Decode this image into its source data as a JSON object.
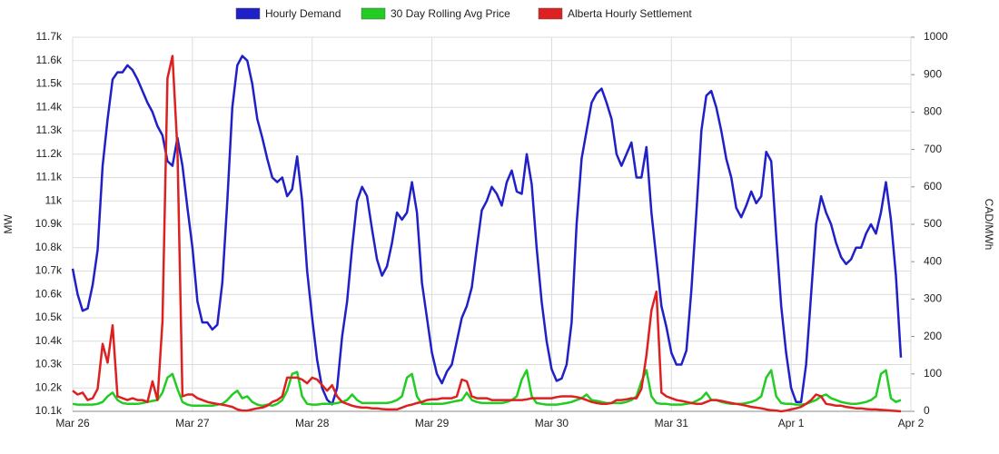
{
  "chart_data": {
    "type": "line",
    "xlim": [
      0,
      168
    ],
    "xticks": [
      {
        "value": 0,
        "label": "Mar 26"
      },
      {
        "value": 24,
        "label": "Mar 27"
      },
      {
        "value": 48,
        "label": "Mar 28"
      },
      {
        "value": 72,
        "label": "Mar 29"
      },
      {
        "value": 96,
        "label": "Mar 30"
      },
      {
        "value": 120,
        "label": "Mar 31"
      },
      {
        "value": 144,
        "label": "Apr 1"
      },
      {
        "value": 168,
        "label": "Apr 2"
      }
    ],
    "ylabel": "MW",
    "ylim": [
      10100,
      11700
    ],
    "yticks": [
      {
        "value": 10100,
        "label": "10.1k"
      },
      {
        "value": 10200,
        "label": "10.2k"
      },
      {
        "value": 10300,
        "label": "10.3k"
      },
      {
        "value": 10400,
        "label": "10.4k"
      },
      {
        "value": 10500,
        "label": "10.5k"
      },
      {
        "value": 10600,
        "label": "10.6k"
      },
      {
        "value": 10700,
        "label": "10.7k"
      },
      {
        "value": 10800,
        "label": "10.8k"
      },
      {
        "value": 10900,
        "label": "10.9k"
      },
      {
        "value": 11000,
        "label": "11k"
      },
      {
        "value": 11100,
        "label": "11.1k"
      },
      {
        "value": 11200,
        "label": "11.2k"
      },
      {
        "value": 11300,
        "label": "11.3k"
      },
      {
        "value": 11400,
        "label": "11.4k"
      },
      {
        "value": 11500,
        "label": "11.5k"
      },
      {
        "value": 11600,
        "label": "11.6k"
      },
      {
        "value": 11700,
        "label": "11.7k"
      }
    ],
    "y2label": "CAD/MWh",
    "y2lim": [
      0,
      1000
    ],
    "y2ticks": [
      0,
      100,
      200,
      300,
      400,
      500,
      600,
      700,
      800,
      900,
      1000
    ],
    "grid": true,
    "legend": "top",
    "x": [
      0,
      1,
      2,
      3,
      4,
      5,
      6,
      7,
      8,
      9,
      10,
      11,
      12,
      13,
      14,
      15,
      16,
      17,
      18,
      19,
      20,
      21,
      22,
      23,
      24,
      25,
      26,
      27,
      28,
      29,
      30,
      31,
      32,
      33,
      34,
      35,
      36,
      37,
      38,
      39,
      40,
      41,
      42,
      43,
      44,
      45,
      46,
      47,
      48,
      49,
      50,
      51,
      52,
      53,
      54,
      55,
      56,
      57,
      58,
      59,
      60,
      61,
      62,
      63,
      64,
      65,
      66,
      67,
      68,
      69,
      70,
      71,
      72,
      73,
      74,
      75,
      76,
      77,
      78,
      79,
      80,
      81,
      82,
      83,
      84,
      85,
      86,
      87,
      88,
      89,
      90,
      91,
      92,
      93,
      94,
      95,
      96,
      97,
      98,
      99,
      100,
      101,
      102,
      103,
      104,
      105,
      106,
      107,
      108,
      109,
      110,
      111,
      112,
      113,
      114,
      115,
      116,
      117,
      118,
      119,
      120,
      121,
      122,
      123,
      124,
      125,
      126,
      127,
      128,
      129,
      130,
      131,
      132,
      133,
      134,
      135,
      136,
      137,
      138,
      139,
      140,
      141,
      142,
      143,
      144,
      145,
      146,
      147,
      148,
      149,
      150,
      151,
      152,
      153,
      154,
      155,
      156,
      157,
      158,
      159,
      160,
      161,
      162,
      163,
      164,
      165,
      166
    ],
    "series": [
      {
        "name": "Hourly Demand",
        "color": "#2020c8",
        "values": [
          10710,
          10600,
          10530,
          10540,
          10640,
          10790,
          11150,
          11350,
          11520,
          11550,
          11550,
          11580,
          11560,
          11520,
          11470,
          11420,
          11380,
          11320,
          11280,
          11170,
          11150,
          11270,
          11150,
          10970,
          10800,
          10570,
          10480,
          10480,
          10450,
          10470,
          10650,
          11000,
          11400,
          11580,
          11620,
          11600,
          11500,
          11350,
          11270,
          11180,
          11100,
          11080,
          11100,
          11020,
          11050,
          11190,
          11000,
          10700,
          10500,
          10320,
          10200,
          10150,
          10130,
          10200,
          10420,
          10570,
          10800,
          11000,
          11060,
          11020,
          10880,
          10750,
          10680,
          10720,
          10820,
          10950,
          10920,
          10950,
          11080,
          10950,
          10650,
          10500,
          10350,
          10260,
          10220,
          10270,
          10300,
          10400,
          10500,
          10550,
          10630,
          10800,
          10960,
          11000,
          11060,
          11030,
          10980,
          11080,
          11130,
          11040,
          11030,
          11200,
          11070,
          10800,
          10570,
          10400,
          10280,
          10230,
          10240,
          10300,
          10480,
          10900,
          11180,
          11300,
          11420,
          11460,
          11480,
          11420,
          11350,
          11200,
          11150,
          11200,
          11250,
          11100,
          11100,
          11230,
          10950,
          10750,
          10550,
          10460,
          10350,
          10300,
          10300,
          10360,
          10620,
          10950,
          11300,
          11450,
          11470,
          11400,
          11300,
          11180,
          11100,
          10970,
          10930,
          10980,
          11040,
          10990,
          11020,
          11210,
          11170,
          10850,
          10550,
          10350,
          10200,
          10140,
          10140,
          10300,
          10600,
          10900,
          11020,
          10950,
          10900,
          10820,
          10760,
          10730,
          10750,
          10800,
          10800,
          10860,
          10900,
          10860,
          10950,
          11080,
          10920,
          10680,
          10330
        ]
      },
      {
        "name": "30 Day Rolling Avg Price",
        "color": "#22cc22",
        "axis": "y2",
        "values": [
          20,
          18,
          18,
          18,
          18,
          20,
          25,
          40,
          50,
          30,
          22,
          20,
          20,
          20,
          22,
          25,
          28,
          30,
          50,
          90,
          100,
          60,
          25,
          18,
          15,
          15,
          15,
          15,
          15,
          18,
          20,
          30,
          45,
          55,
          35,
          40,
          25,
          18,
          15,
          18,
          15,
          20,
          30,
          55,
          100,
          105,
          40,
          20,
          18,
          18,
          20,
          20,
          20,
          22,
          25,
          30,
          45,
          30,
          22,
          22,
          22,
          22,
          22,
          22,
          25,
          30,
          40,
          90,
          100,
          40,
          20,
          20,
          20,
          20,
          20,
          22,
          25,
          28,
          30,
          50,
          30,
          25,
          22,
          22,
          22,
          22,
          22,
          25,
          30,
          40,
          85,
          110,
          40,
          22,
          20,
          18,
          18,
          18,
          20,
          22,
          25,
          30,
          35,
          45,
          30,
          28,
          25,
          22,
          22,
          22,
          22,
          25,
          30,
          40,
          80,
          110,
          40,
          22,
          20,
          20,
          18,
          18,
          18,
          20,
          22,
          28,
          35,
          50,
          30,
          30,
          25,
          22,
          20,
          20,
          20,
          22,
          25,
          30,
          40,
          90,
          110,
          40,
          22,
          20,
          20,
          18,
          18,
          20,
          25,
          30,
          40,
          45,
          35,
          30,
          25,
          22,
          20,
          20,
          22,
          25,
          30,
          40,
          100,
          110,
          35,
          25,
          30
        ]
      },
      {
        "name": "Alberta Hourly Settlement",
        "color": "#dd2020",
        "axis": "y2",
        "values": [
          55,
          45,
          50,
          30,
          35,
          60,
          180,
          130,
          230,
          40,
          35,
          30,
          35,
          30,
          30,
          25,
          80,
          30,
          240,
          890,
          950,
          700,
          40,
          45,
          45,
          35,
          30,
          25,
          22,
          20,
          18,
          15,
          12,
          5,
          2,
          2,
          5,
          8,
          10,
          15,
          25,
          30,
          40,
          90,
          90,
          90,
          85,
          75,
          90,
          85,
          70,
          55,
          70,
          40,
          25,
          20,
          15,
          12,
          10,
          10,
          8,
          8,
          6,
          5,
          5,
          5,
          10,
          15,
          18,
          22,
          25,
          30,
          32,
          32,
          35,
          35,
          35,
          40,
          85,
          80,
          40,
          35,
          35,
          35,
          30,
          30,
          30,
          30,
          30,
          30,
          30,
          32,
          35,
          35,
          35,
          35,
          35,
          38,
          40,
          40,
          40,
          38,
          35,
          30,
          25,
          22,
          20,
          20,
          22,
          30,
          30,
          32,
          35,
          35,
          60,
          150,
          270,
          320,
          50,
          40,
          35,
          30,
          28,
          25,
          22,
          20,
          20,
          25,
          30,
          30,
          28,
          25,
          22,
          20,
          18,
          15,
          12,
          10,
          8,
          5,
          3,
          2,
          0,
          2,
          5,
          8,
          12,
          20,
          30,
          45,
          40,
          20,
          18,
          15,
          15,
          12,
          10,
          8,
          8,
          6,
          5,
          5,
          4,
          3,
          2,
          1,
          0
        ]
      }
    ]
  }
}
